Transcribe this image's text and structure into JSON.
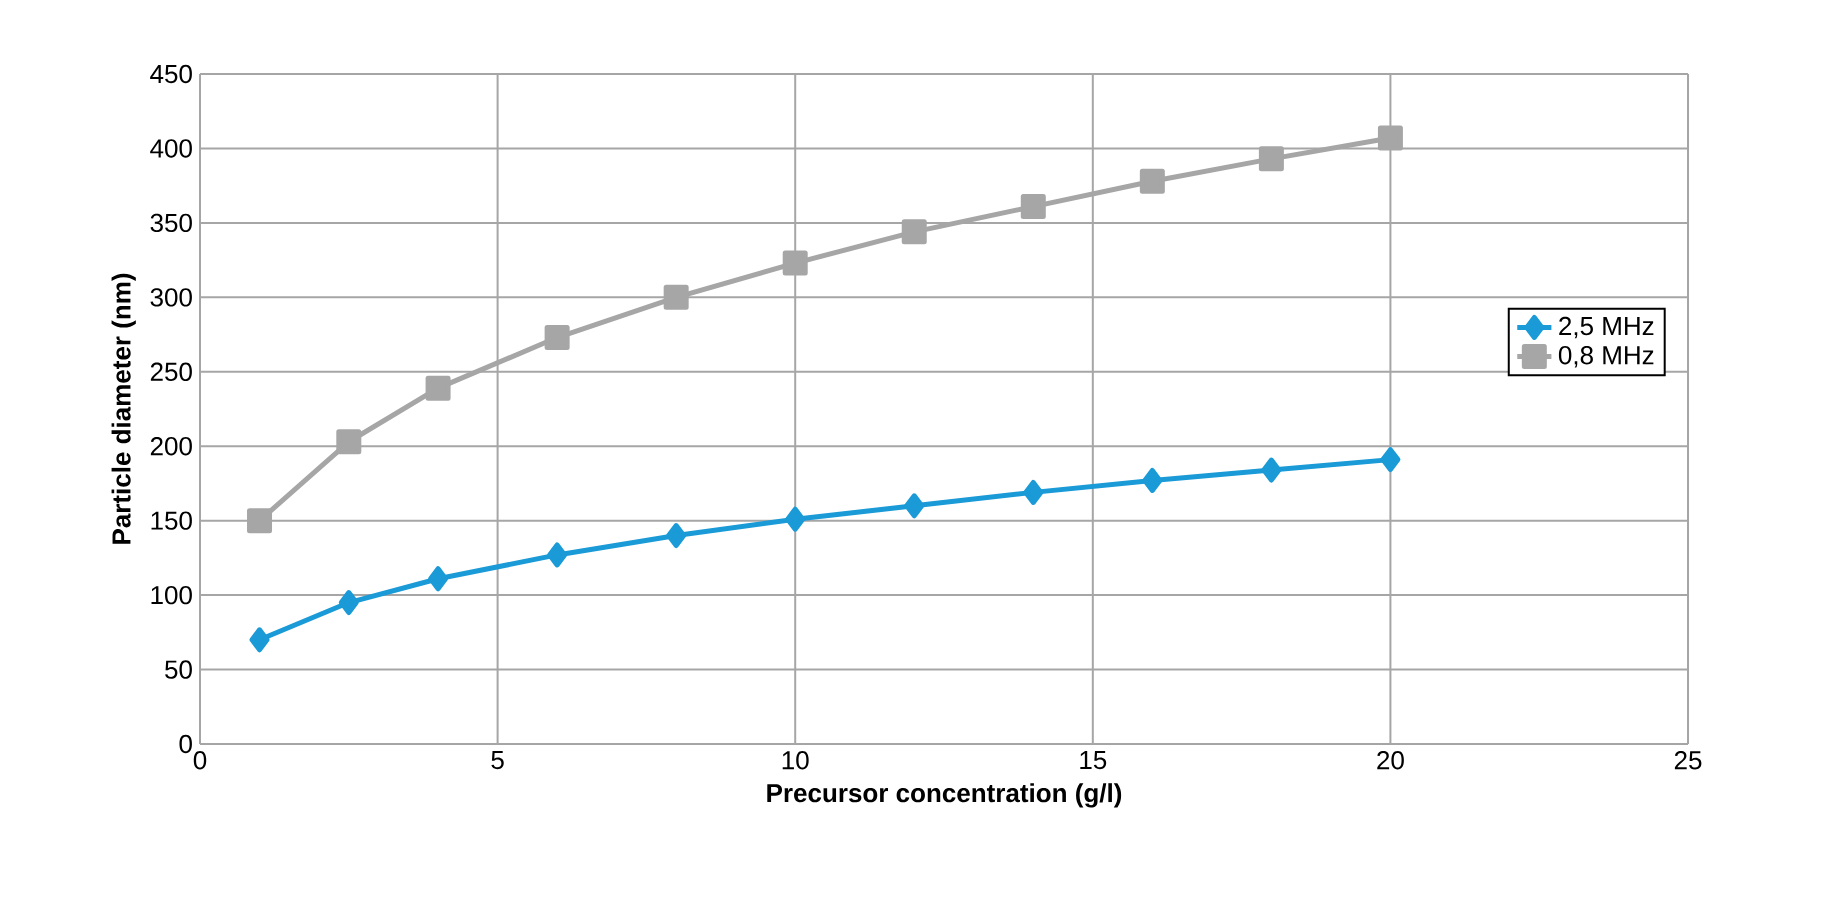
{
  "chart_data": {
    "type": "line",
    "xlabel": "Precursor concentration (g/l)",
    "ylabel": "Particle diameter (nm)",
    "x": [
      1,
      2.5,
      4,
      6,
      8,
      10,
      12,
      14,
      16,
      18,
      20
    ],
    "series": [
      {
        "name": "2,5 MHz",
        "color": "#1a9ad6",
        "marker": "diamond",
        "values": [
          70,
          95,
          111,
          127,
          140,
          151,
          160,
          169,
          177,
          184,
          191
        ]
      },
      {
        "name": "0,8 MHz",
        "color": "#a6a6a6",
        "marker": "square",
        "values": [
          150,
          203,
          239,
          273,
          300,
          323,
          344,
          361,
          378,
          393,
          407
        ]
      }
    ],
    "xlim": [
      0,
      25
    ],
    "xticks": [
      0,
      5,
      10,
      15,
      20,
      25
    ],
    "ylim": [
      0,
      450
    ],
    "yticks": [
      0,
      50,
      100,
      150,
      200,
      250,
      300,
      350,
      400,
      450
    ],
    "grid": true,
    "legend": "right",
    "line_style": "solid"
  }
}
